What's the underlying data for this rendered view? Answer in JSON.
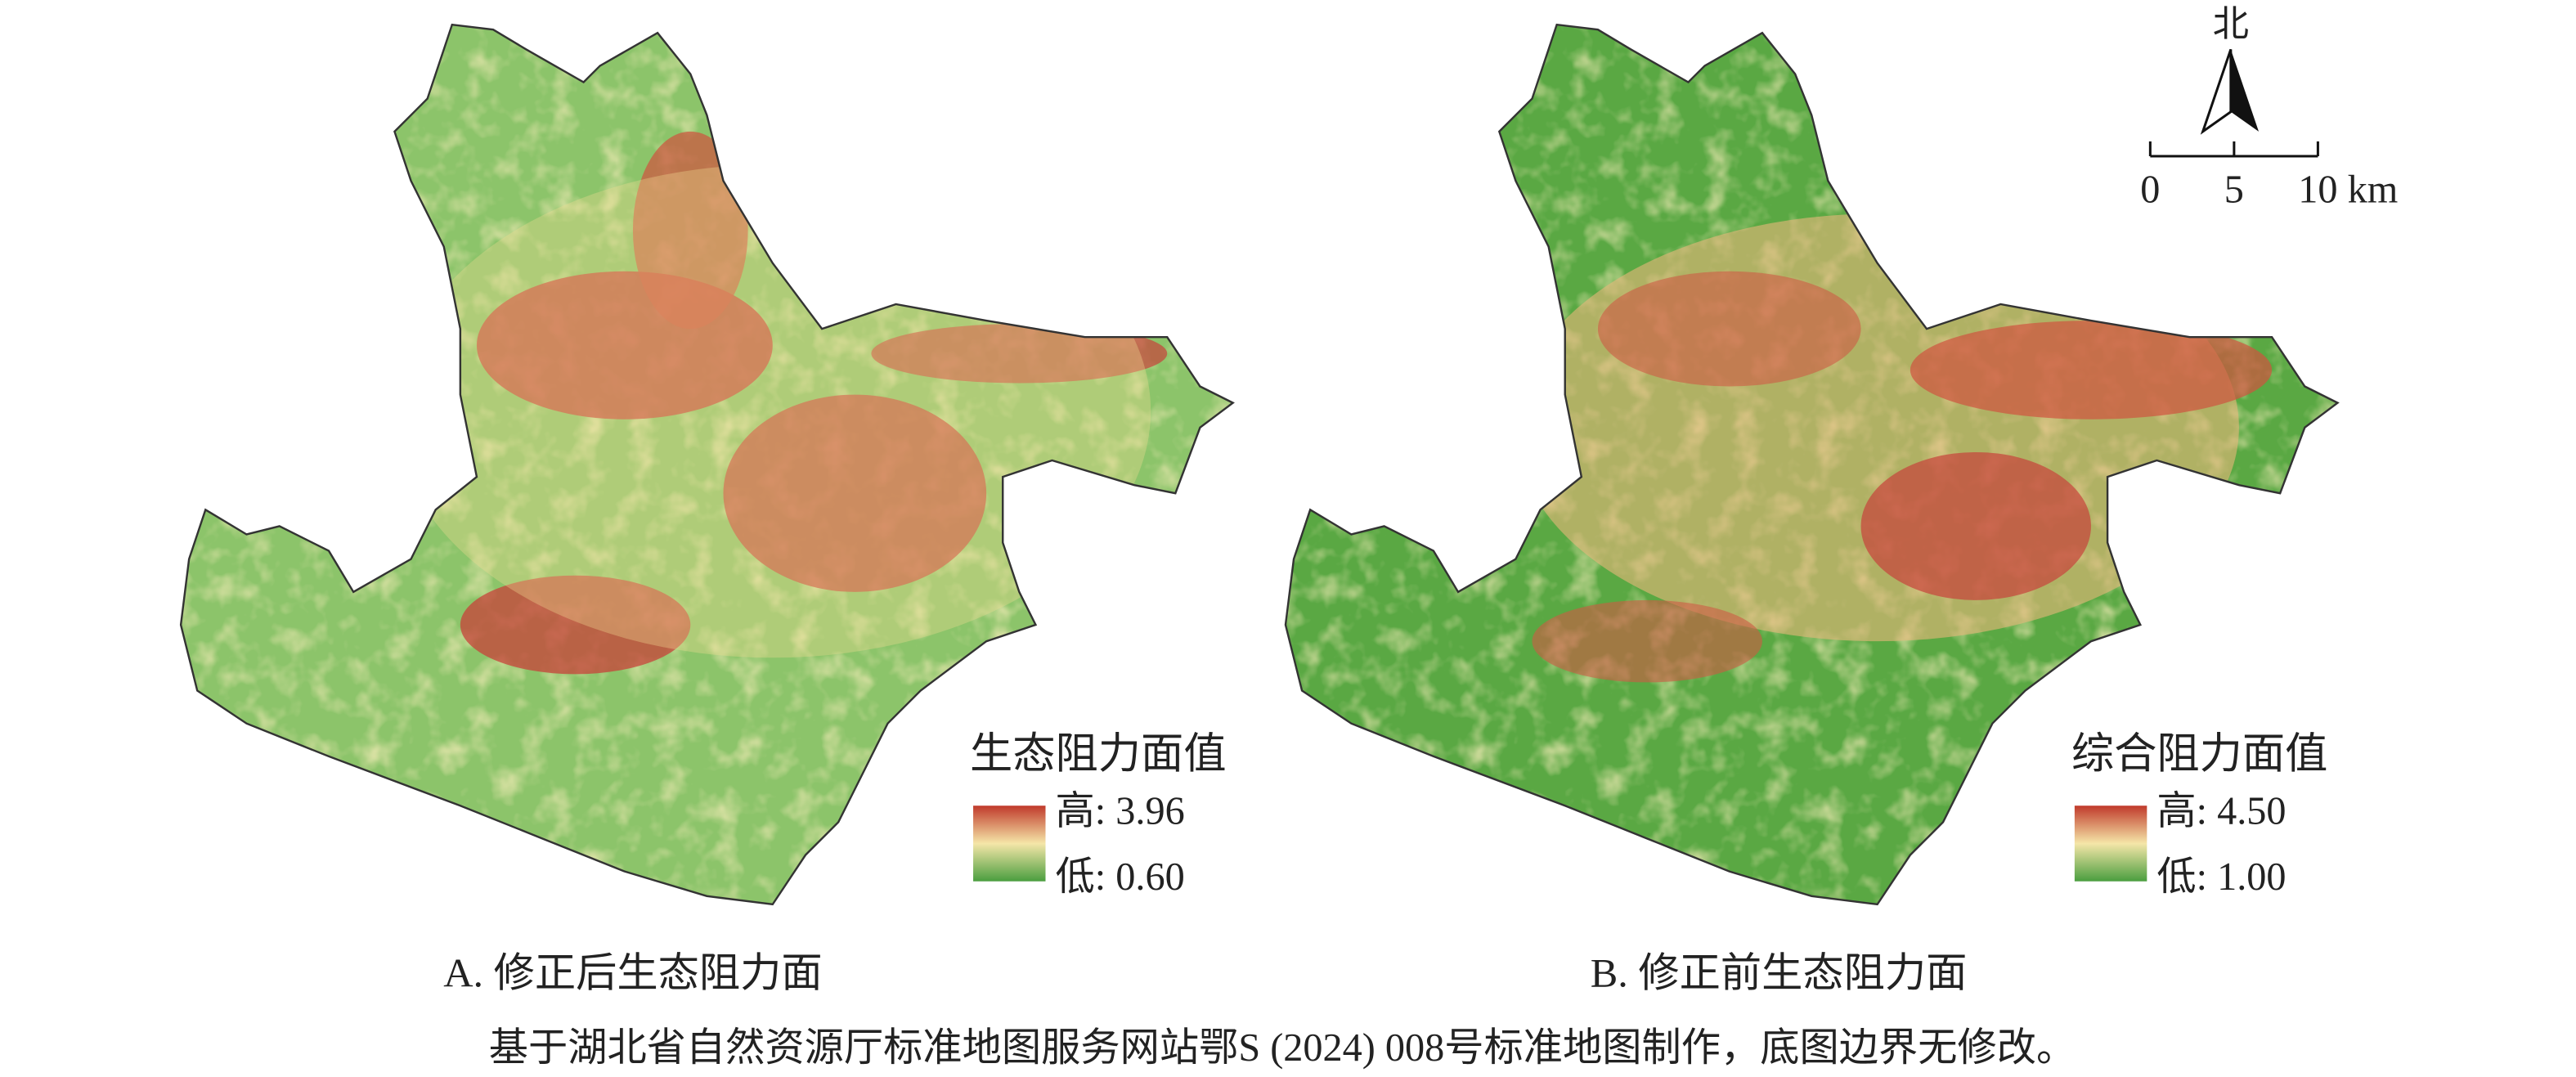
{
  "panels": [
    {
      "legend_title": "生态阻力面值",
      "high_label": "高: 3.96",
      "low_label": "低: 0.60",
      "caption": "A. 修正后生态阻力面"
    },
    {
      "legend_title": "综合阻力面值",
      "high_label": "高: 4.50",
      "low_label": "低: 1.00",
      "caption": "B. 修正前生态阻力面"
    }
  ],
  "north_label": "北",
  "scale_bar": {
    "labels": [
      "0",
      "5",
      "10 km"
    ]
  },
  "footer": "基于湖北省自然资源厅标准地图服务网站鄂S (2024) 008号标准地图制作，底图边界无修改。"
}
